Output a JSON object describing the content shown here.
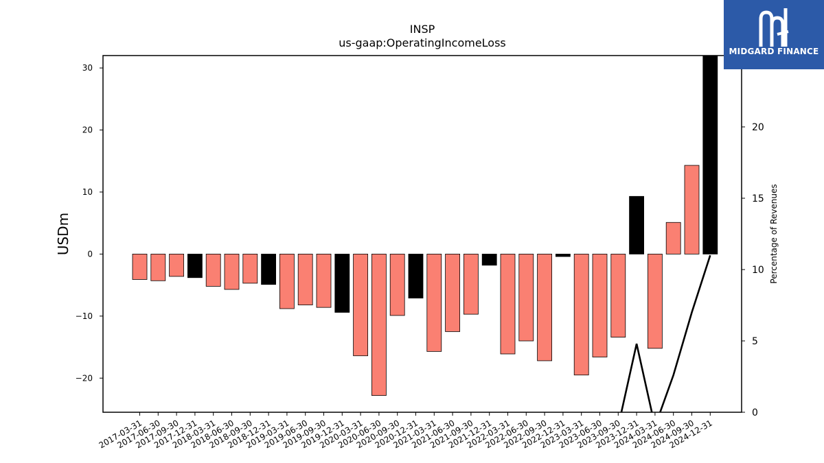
{
  "chart_data": {
    "type": "bar",
    "title": "INSP",
    "subtitle": "us-gaap:OperatingIncomeLoss",
    "ylabel": "USDm",
    "y2label": "Percentage of Revenues",
    "ylim": [
      -25.5,
      32
    ],
    "y2lim": [
      0,
      25
    ],
    "yticks": [
      -20,
      -10,
      0,
      10,
      20,
      30
    ],
    "y2ticks": [
      0,
      5,
      10,
      15,
      20
    ],
    "categories": [
      "2017-03-31",
      "2017-06-30",
      "2017-09-30",
      "2017-12-31",
      "2018-03-31",
      "2018-06-30",
      "2018-09-30",
      "2018-12-31",
      "2019-03-31",
      "2019-06-30",
      "2019-09-30",
      "2019-12-31",
      "2020-03-31",
      "2020-06-30",
      "2020-09-30",
      "2020-12-31",
      "2021-03-31",
      "2021-06-30",
      "2021-09-30",
      "2021-12-31",
      "2022-03-31",
      "2022-06-30",
      "2022-09-30",
      "2022-12-31",
      "2023-03-31",
      "2023-06-30",
      "2023-09-30",
      "2023-12-31",
      "2024-03-31",
      "2024-06-30",
      "2024-09-30",
      "2024-12-31"
    ],
    "series": [
      {
        "values": [
          -4.1,
          -4.3,
          -3.6,
          -3.8,
          -5.2,
          -5.7,
          -4.7,
          -4.9,
          -8.8,
          -8.2,
          -8.6,
          -9.4,
          -16.4,
          -22.8,
          -9.9,
          -7.1,
          -15.7,
          -12.5,
          -9.7,
          -1.8,
          -16.1,
          -14.0,
          -17.2,
          -0.4,
          -19.5,
          -16.6,
          -13.4,
          9.3,
          -15.2,
          5.1,
          14.3,
          32.0
        ]
      },
      {
        "axis": "right",
        "type": "line",
        "values": [
          null,
          null,
          null,
          null,
          null,
          null,
          null,
          null,
          null,
          null,
          null,
          null,
          null,
          null,
          null,
          null,
          null,
          null,
          null,
          null,
          null,
          null,
          null,
          null,
          null,
          null,
          -1.0,
          4.8,
          -1.0,
          2.6,
          7.0,
          11.0
        ]
      }
    ],
    "bar_colors": {
      "quarter": "#fa8072",
      "year_end": "#000000"
    },
    "line_color": "#000000"
  },
  "logo": {
    "name": "MIDGARD FINANCE",
    "icon": "midgard-logo-icon",
    "bg": "#2c5aa8"
  }
}
